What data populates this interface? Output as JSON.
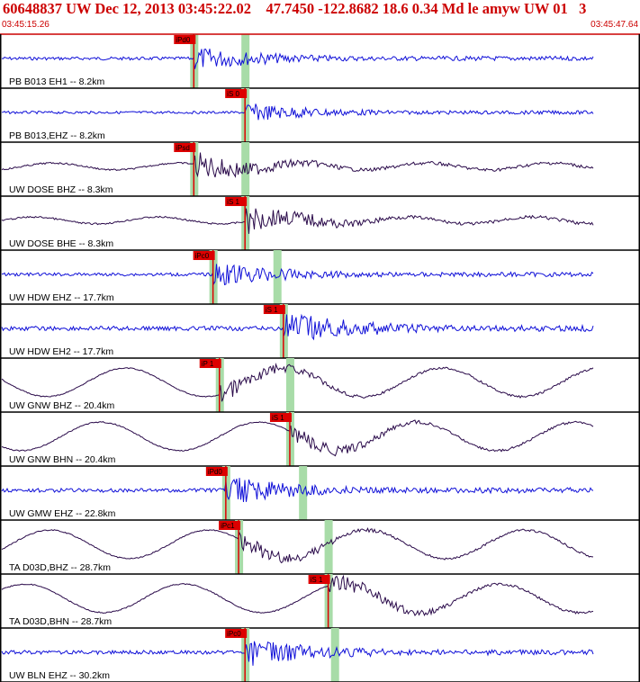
{
  "header": {
    "title": "60648837 UW Dec 12, 2013 03:45:22.02    47.7450 -122.8682 18.6 0.34 Md le amyw UW 01   3",
    "start_time": "03:45:15.26",
    "end_time": "03:45:47.64"
  },
  "colors": {
    "frame": "#cc0000",
    "pick_flag": "#dd0000",
    "highlight": "#a8dca8",
    "trace_blue": "#1010d8",
    "trace_dark": "#2a0a4a"
  },
  "traces": [
    {
      "label": "PB B013 EH1 -- 8.2km",
      "wave": "noise",
      "color": "blue",
      "pick": "iPd0",
      "pick2": "",
      "arrival": 0.3,
      "second": 0.38,
      "amp": 0.5
    },
    {
      "label": "PB B013,EHZ -- 8.2km",
      "wave": "noise",
      "color": "blue",
      "pick": "iS 0",
      "pick2": "",
      "arrival": 0.38,
      "second": 0,
      "amp": 0.4
    },
    {
      "label": "UW DOSE BHZ -- 8.3km",
      "wave": "mixed",
      "color": "dark",
      "pick": "iPsd",
      "pick2": "",
      "arrival": 0.3,
      "second": 0.38,
      "amp": 0.6
    },
    {
      "label": "UW DOSE BHE -- 8.3km",
      "wave": "mixed",
      "color": "dark",
      "pick": "iS 1",
      "pick2": "",
      "arrival": 0.38,
      "second": 0,
      "amp": 0.6
    },
    {
      "label": "UW HDW EHZ -- 17.7km",
      "wave": "noise",
      "color": "blue",
      "pick": "iPc0",
      "pick2": "",
      "arrival": 0.33,
      "second": 0.43,
      "amp": 0.5
    },
    {
      "label": "UW HDW EH2 -- 17.7km",
      "wave": "noise",
      "color": "blue",
      "pick": "iS 1",
      "pick2": "",
      "arrival": 0.44,
      "second": 0,
      "amp": 0.7
    },
    {
      "label": "UW GNW BHZ -- 20.4km",
      "wave": "long",
      "color": "dark",
      "pick": "iP 1",
      "pick2": "",
      "arrival": 0.34,
      "second": 0.45,
      "amp": 0.7
    },
    {
      "label": "UW GNW BHN -- 20.4km",
      "wave": "long",
      "color": "dark",
      "pick": "iS 1",
      "pick2": "",
      "arrival": 0.45,
      "second": 0,
      "amp": 0.7
    },
    {
      "label": "UW GMW EHZ -- 22.8km",
      "wave": "noise",
      "color": "blue",
      "pick": "iPd0",
      "pick2": "",
      "arrival": 0.35,
      "second": 0.47,
      "amp": 0.6
    },
    {
      "label": "TA D03D,BHZ -- 28.7km",
      "wave": "long",
      "color": "dark",
      "pick": "iPc1",
      "pick2": "",
      "arrival": 0.37,
      "second": 0.51,
      "amp": 0.7
    },
    {
      "label": "TA D03D,BHN -- 28.7km",
      "wave": "long",
      "color": "dark",
      "pick": "iS 1",
      "pick2": "",
      "arrival": 0.51,
      "second": 0,
      "amp": 0.7
    },
    {
      "label": "UW BLN EHZ -- 30.2km",
      "wave": "noise",
      "color": "blue",
      "pick": "iPc0",
      "pick2": "",
      "arrival": 0.38,
      "second": 0.52,
      "amp": 0.6
    }
  ]
}
